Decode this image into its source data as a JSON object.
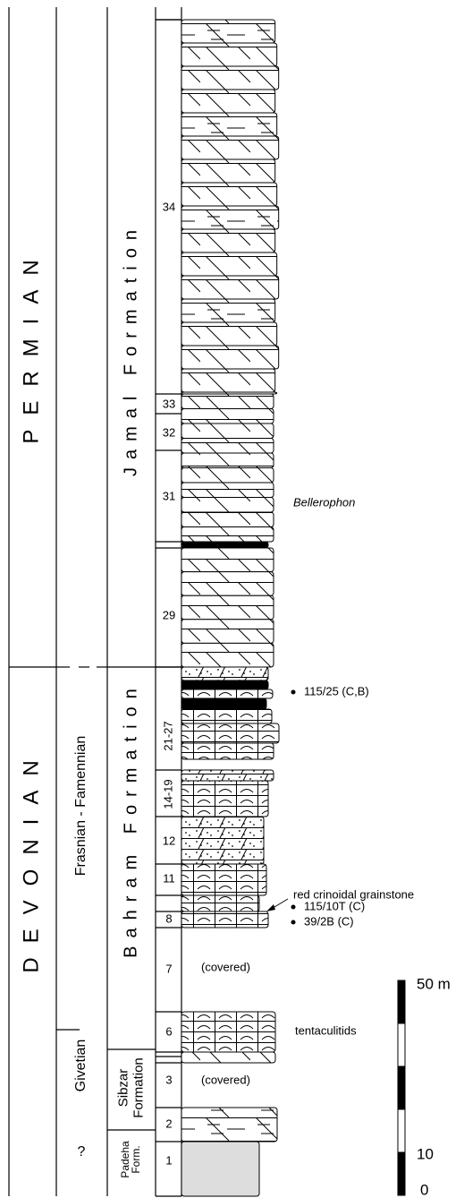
{
  "systems": [
    "PERMIAN",
    "DEVONIAN"
  ],
  "stages": [
    "Frasnian - Famennian",
    "Givetian",
    "?"
  ],
  "formations": [
    {
      "lines": [
        "Jamal Formation"
      ]
    },
    {
      "lines": [
        "Bahram Formation"
      ]
    },
    {
      "lines": [
        "Sibzar",
        "Formation"
      ]
    },
    {
      "lines": [
        "Padeha",
        "Form."
      ]
    }
  ],
  "units": [
    "34",
    "33",
    "32",
    "31",
    "29",
    "21-27",
    "14-19",
    "12",
    "11",
    "8",
    "7",
    "6",
    "3",
    "2",
    "1"
  ],
  "annotations": {
    "fossil": "Bellerophon",
    "sample_top": "115/25 (C,B)",
    "lithology_note": "red crinoidal grainstone",
    "sample_mid": "115/10T (C)",
    "sample_low": "39/2B (C)",
    "covered_upper": "(covered)",
    "fossil_low": "tentaculitids",
    "covered_lower": "(covered)"
  },
  "scale": {
    "top": "50 m",
    "mid": "10",
    "bottom": "0"
  }
}
